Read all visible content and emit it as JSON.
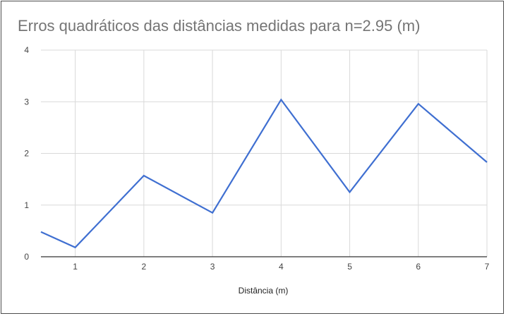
{
  "chart_data": {
    "type": "line",
    "title": "Erros quadráticos das distâncias medidas para n=2.95 (m)",
    "xlabel": "Distância (m)",
    "ylabel": "",
    "xlim": [
      0.5,
      7
    ],
    "ylim": [
      0,
      4
    ],
    "x_ticks": [
      1,
      2,
      3,
      4,
      5,
      6,
      7
    ],
    "y_ticks": [
      0,
      1,
      2,
      3,
      4
    ],
    "grid": true,
    "legend": "none",
    "series": [
      {
        "color": "#3f6fd1",
        "x": [
          0.5,
          1,
          2,
          3,
          4,
          5,
          6,
          7
        ],
        "y": [
          0.48,
          0.18,
          1.57,
          0.85,
          3.04,
          1.25,
          2.96,
          1.83
        ]
      }
    ]
  }
}
